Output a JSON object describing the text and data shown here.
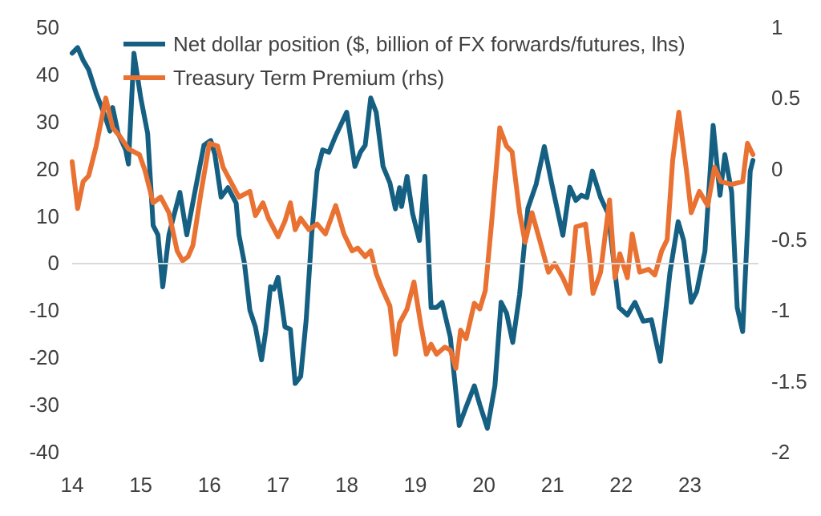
{
  "chart_data": {
    "type": "line",
    "xlim": [
      2014,
      2024
    ],
    "xticks": [
      {
        "value": 2014,
        "label": "14"
      },
      {
        "value": 2015,
        "label": "15"
      },
      {
        "value": 2016,
        "label": "16"
      },
      {
        "value": 2017,
        "label": "17"
      },
      {
        "value": 2018,
        "label": "18"
      },
      {
        "value": 2019,
        "label": "19"
      },
      {
        "value": 2020,
        "label": "20"
      },
      {
        "value": 2021,
        "label": "21"
      },
      {
        "value": 2022,
        "label": "22"
      },
      {
        "value": 2023,
        "label": "23"
      }
    ],
    "ylim": [
      -40,
      50
    ],
    "yticks": [
      -40,
      -30,
      -20,
      -10,
      0,
      10,
      20,
      30,
      40,
      50
    ],
    "y2lim": [
      -2,
      1
    ],
    "y2ticks": [
      -2,
      -1.5,
      -1,
      -0.5,
      0,
      0.5,
      1
    ],
    "grid": false,
    "legend": "top left",
    "marker": "none",
    "line_style": "solid",
    "ref_lines": [
      {
        "axis": "y",
        "value": 0,
        "color": "#d9d9d9"
      }
    ],
    "series": [
      {
        "name": "Net dollar position ($, billion of FX forwards/futures, lhs)",
        "color": "#156082",
        "x": [
          2014.0,
          2014.08,
          2014.16,
          2014.24,
          2014.35,
          2014.47,
          2014.55,
          2014.59,
          2014.67,
          2014.78,
          2014.82,
          2014.9,
          2015.0,
          2015.1,
          2015.18,
          2015.25,
          2015.32,
          2015.41,
          2015.57,
          2015.67,
          2015.8,
          2015.92,
          2016.02,
          2016.08,
          2016.17,
          2016.27,
          2016.39,
          2016.43,
          2016.51,
          2016.59,
          2016.67,
          2016.76,
          2016.82,
          2016.89,
          2016.94,
          2017.0,
          2017.1,
          2017.18,
          2017.25,
          2017.33,
          2017.41,
          2017.49,
          2017.57,
          2017.65,
          2017.74,
          2017.84,
          2018.0,
          2018.12,
          2018.2,
          2018.27,
          2018.35,
          2018.43,
          2018.53,
          2018.63,
          2018.71,
          2018.77,
          2018.8,
          2018.88,
          2018.96,
          2019.06,
          2019.14,
          2019.23,
          2019.31,
          2019.39,
          2019.51,
          2019.64,
          2019.74,
          2019.86,
          2019.94,
          2020.05,
          2020.16,
          2020.25,
          2020.33,
          2020.42,
          2020.52,
          2020.64,
          2020.76,
          2020.88,
          2020.99,
          2021.15,
          2021.25,
          2021.34,
          2021.42,
          2021.5,
          2021.58,
          2021.7,
          2021.81,
          2021.97,
          2022.09,
          2022.2,
          2022.32,
          2022.44,
          2022.57,
          2022.71,
          2022.83,
          2022.91,
          2023.02,
          2023.1,
          2023.22,
          2023.34,
          2023.44,
          2023.51,
          2023.61,
          2023.69,
          2023.77,
          2023.88,
          2023.92
        ],
        "values": [
          44.5,
          45.7,
          43,
          41,
          36,
          31.5,
          28,
          33,
          27.5,
          24,
          21,
          44.5,
          35,
          27.5,
          8,
          6,
          -5,
          6,
          15,
          6,
          16,
          25,
          26,
          23,
          14,
          16,
          12.7,
          6,
          0,
          -10,
          -13.5,
          -20.5,
          -14.5,
          -5,
          -5.5,
          -3,
          -13.5,
          -14,
          -25.5,
          -24,
          -12,
          6,
          19.5,
          24,
          23.5,
          27,
          32,
          20.5,
          23.5,
          25,
          35,
          32,
          20.5,
          17,
          11.5,
          16,
          12,
          18.4,
          10.5,
          4.8,
          18.4,
          -9.4,
          -9.4,
          -8.3,
          -15.7,
          -34.4,
          -30.5,
          -26,
          -30,
          -35,
          -26,
          -8.3,
          -10.6,
          -16.8,
          -6.6,
          11.6,
          16.7,
          24.7,
          16.7,
          5.9,
          16.1,
          13.3,
          14.4,
          13.9,
          19.5,
          13.9,
          10.5,
          -9.4,
          -11,
          -8.3,
          -12.3,
          -12,
          -20.8,
          -2,
          8.8,
          4.8,
          -8.3,
          -6,
          2.5,
          29.2,
          14.4,
          23,
          15,
          -9.4,
          -14.5,
          19.5,
          21.8
        ]
      },
      {
        "name": "Treasury Term Premium (rhs)",
        "color": "#e97132",
        "axis": "y2",
        "x": [
          2014.0,
          2014.08,
          2014.16,
          2014.24,
          2014.35,
          2014.49,
          2014.59,
          2014.71,
          2014.82,
          2014.98,
          2015.06,
          2015.18,
          2015.29,
          2015.41,
          2015.53,
          2015.61,
          2015.69,
          2015.76,
          2015.88,
          2016.0,
          2016.12,
          2016.2,
          2016.31,
          2016.43,
          2016.59,
          2016.67,
          2016.78,
          2016.86,
          2017.0,
          2017.1,
          2017.18,
          2017.25,
          2017.33,
          2017.45,
          2017.57,
          2017.69,
          2017.84,
          2017.96,
          2018.08,
          2018.16,
          2018.27,
          2018.35,
          2018.43,
          2018.51,
          2018.63,
          2018.71,
          2018.77,
          2018.88,
          2018.98,
          2019.08,
          2019.16,
          2019.23,
          2019.31,
          2019.43,
          2019.51,
          2019.59,
          2019.66,
          2019.74,
          2019.86,
          2019.94,
          2020.02,
          2020.11,
          2020.23,
          2020.33,
          2020.41,
          2020.52,
          2020.6,
          2020.7,
          2020.81,
          2020.94,
          2021.03,
          2021.15,
          2021.25,
          2021.34,
          2021.48,
          2021.54,
          2021.59,
          2021.7,
          2021.83,
          2021.91,
          2021.98,
          2022.09,
          2022.16,
          2022.27,
          2022.4,
          2022.49,
          2022.59,
          2022.67,
          2022.75,
          2022.84,
          2022.95,
          2023.02,
          2023.14,
          2023.26,
          2023.36,
          2023.45,
          2023.61,
          2023.77,
          2023.84,
          2023.92
        ],
        "values": [
          0.05,
          -0.28,
          -0.09,
          -0.05,
          0.16,
          0.5,
          0.29,
          0.22,
          0.14,
          0.1,
          -0.01,
          -0.24,
          -0.2,
          -0.31,
          -0.58,
          -0.65,
          -0.62,
          -0.54,
          -0.16,
          0.18,
          0.16,
          0.01,
          -0.09,
          -0.2,
          -0.16,
          -0.33,
          -0.24,
          -0.35,
          -0.48,
          -0.37,
          -0.24,
          -0.43,
          -0.35,
          -0.43,
          -0.39,
          -0.46,
          -0.26,
          -0.46,
          -0.58,
          -0.56,
          -0.62,
          -0.58,
          -0.74,
          -0.84,
          -0.97,
          -1.31,
          -1.09,
          -0.99,
          -0.8,
          -1.1,
          -1.31,
          -1.24,
          -1.31,
          -1.26,
          -1.28,
          -1.41,
          -1.14,
          -1.2,
          -0.95,
          -0.99,
          -0.86,
          -0.39,
          0.29,
          0.16,
          0.12,
          -0.31,
          -0.52,
          -0.31,
          -0.5,
          -0.73,
          -0.67,
          -0.77,
          -0.88,
          -0.41,
          -0.39,
          -0.63,
          -0.88,
          -0.73,
          -0.22,
          -0.77,
          -0.6,
          -0.77,
          -0.46,
          -0.73,
          -0.71,
          -0.75,
          -0.58,
          -0.5,
          0.06,
          0.4,
          -0.01,
          -0.31,
          -0.16,
          -0.26,
          0.01,
          -0.09,
          -0.11,
          -0.09,
          0.18,
          0.1
        ]
      }
    ]
  }
}
